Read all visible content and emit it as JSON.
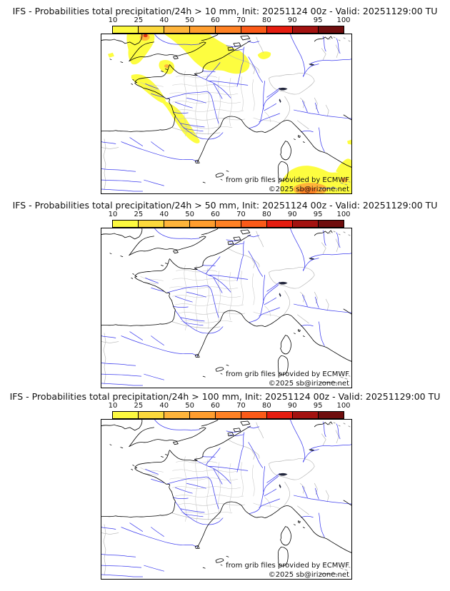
{
  "panels": [
    {
      "title": "IFS - Probabilities total precipitation/24h > 10 mm, Init: 20251124 00z - Valid: 20251129:00 TU",
      "threshold_mm": 10
    },
    {
      "title": "IFS - Probabilities total precipitation/24h > 50 mm, Init: 20251124 00z - Valid: 20251129:00 TU",
      "threshold_mm": 50
    },
    {
      "title": "IFS - Probabilities total precipitation/24h > 100 mm, Init: 20251124 00z - Valid: 20251129:00 TU",
      "threshold_mm": 100
    }
  ],
  "colorbar": {
    "tick_labels": [
      "10",
      "25",
      "40",
      "50",
      "60",
      "70",
      "80",
      "90",
      "95",
      "100"
    ],
    "segment_colors": [
      "#fcf93f",
      "#fcd93c",
      "#feb43b",
      "#ff9d2e",
      "#ff8124",
      "#fb5a18",
      "#e51d10",
      "#a31210",
      "#6f0d0d"
    ]
  },
  "map": {
    "attribution": "from grib files provided by ECMWF",
    "copyright": "©2025 sb@irizone.net",
    "colors": {
      "coastline": "#000000",
      "rivers": "#3c3cee",
      "department_boundaries": "#c6c6c6",
      "country_borders": "#b4b4b4",
      "lakes": "#20243a",
      "sea": "#ffffff",
      "prob_yellow": "#fdfd40",
      "prob_orange": "#ffb43a",
      "prob_deep_orange": "#fd8426",
      "prob_red": "#e13414"
    }
  }
}
